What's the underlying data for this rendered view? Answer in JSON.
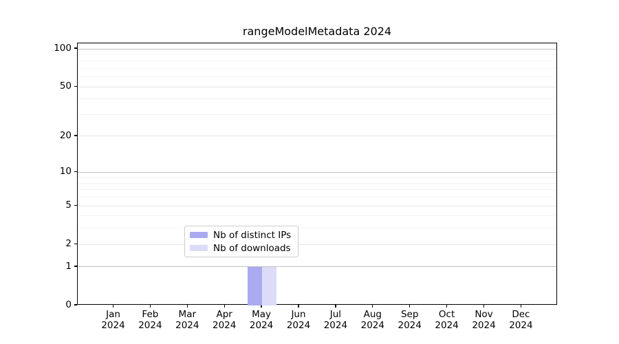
{
  "chart_data": {
    "type": "bar",
    "title": "rangeModelMetadata 2024",
    "x_tick_months": [
      "Jan",
      "Feb",
      "Mar",
      "Apr",
      "May",
      "Jun",
      "Jul",
      "Aug",
      "Sep",
      "Oct",
      "Nov",
      "Dec"
    ],
    "x_tick_year": "2024",
    "series": [
      {
        "name": "Nb of distinct IPs",
        "color": "#aaaaf0",
        "values": [
          0,
          0,
          0,
          0,
          1,
          0,
          0,
          0,
          0,
          0,
          0,
          0
        ]
      },
      {
        "name": "Nb of downloads",
        "color": "#dcdcf8",
        "values": [
          0,
          0,
          0,
          0,
          1,
          0,
          0,
          0,
          0,
          0,
          0,
          0
        ]
      }
    ],
    "y_scale": "log10(1+y)",
    "ylim": [
      0,
      110
    ],
    "y_ticks": [
      0,
      1,
      2,
      5,
      10,
      20,
      50,
      100
    ],
    "y_gridlines": {
      "major": [
        1,
        10,
        100
      ],
      "labeled": [
        2,
        5,
        20,
        50
      ],
      "minor": [
        3,
        4,
        6,
        7,
        8,
        9,
        30,
        40,
        60,
        70,
        80,
        90
      ]
    },
    "legend_position": "lower center, inside plot",
    "grid": true
  },
  "colors": {
    "bar_distinct_ips": "#aaaaf0",
    "bar_downloads": "#dcdcf8",
    "spine": "#000000",
    "grid_major": "#c0c0c0",
    "grid_labeled": "#e5e5e5",
    "grid_minor": "#f2f2f2",
    "legend_border": "#cccccc",
    "text": "#000000",
    "background": "#ffffff"
  }
}
